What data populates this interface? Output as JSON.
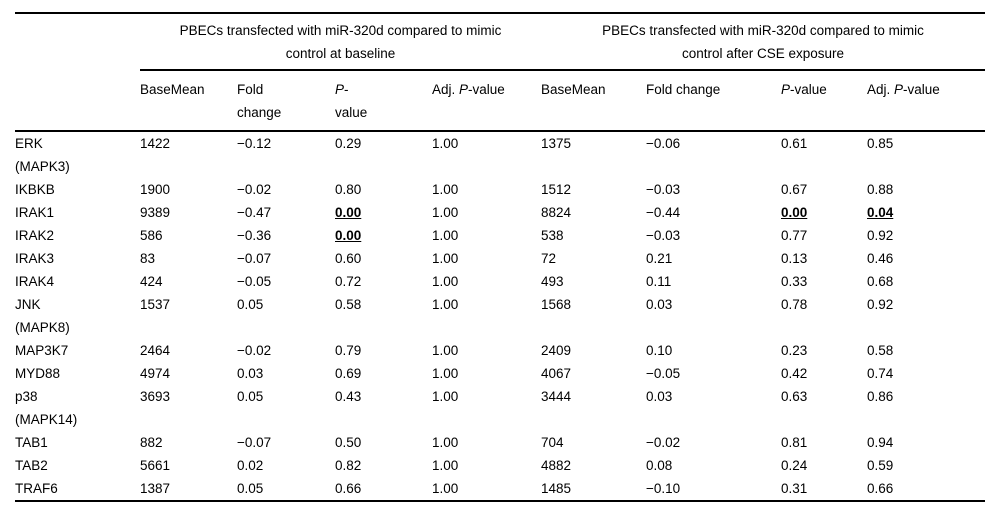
{
  "table": {
    "group_headers": [
      {
        "label": "PBECs transfected with miR-320d compared to mimic\ncontrol at baseline"
      },
      {
        "label": "PBECs transfected with miR-320d compared to mimic\ncontrol after CSE exposure"
      }
    ],
    "col_headers": [
      {
        "pre": "BaseMean",
        "it": "",
        "post": ""
      },
      {
        "pre": "Fold\nchange",
        "it": "",
        "post": ""
      },
      {
        "pre": "",
        "it": "P",
        "post": "-\nvalue"
      },
      {
        "pre": "Adj. ",
        "it": "P",
        "post": "-value"
      },
      {
        "pre": "BaseMean",
        "it": "",
        "post": ""
      },
      {
        "pre": "Fold change",
        "it": "",
        "post": ""
      },
      {
        "pre": "",
        "it": "P",
        "post": "-value"
      },
      {
        "pre": "Adj. ",
        "it": "P",
        "post": "-value"
      }
    ],
    "rows": [
      {
        "gene": "ERK\n(MAPK3)",
        "cells": [
          "1422",
          "−0.12",
          "0.29",
          "1.00",
          "1375",
          "−0.06",
          "0.61",
          "0.85"
        ]
      },
      {
        "gene": "IKBKB",
        "cells": [
          "1900",
          "−0.02",
          "0.80",
          "1.00",
          "1512",
          "−0.03",
          "0.67",
          "0.88"
        ]
      },
      {
        "gene": "IRAK1",
        "cells": [
          "9389",
          "−0.47",
          {
            "text": "0.00",
            "emph": true
          },
          "1.00",
          "8824",
          "−0.44",
          {
            "text": "0.00",
            "emph": true
          },
          {
            "text": "0.04",
            "emph": true
          }
        ]
      },
      {
        "gene": "IRAK2",
        "cells": [
          "586",
          "−0.36",
          {
            "text": "0.00",
            "emph": true
          },
          "1.00",
          "538",
          "−0.03",
          "0.77",
          "0.92"
        ]
      },
      {
        "gene": "IRAK3",
        "cells": [
          "83",
          "−0.07",
          "0.60",
          "1.00",
          "72",
          "0.21",
          "0.13",
          "0.46"
        ]
      },
      {
        "gene": "IRAK4",
        "cells": [
          "424",
          "−0.05",
          "0.72",
          "1.00",
          "493",
          "0.11",
          "0.33",
          "0.68"
        ]
      },
      {
        "gene": "JNK\n(MAPK8)",
        "cells": [
          "1537",
          "0.05",
          "0.58",
          "1.00",
          "1568",
          "0.03",
          "0.78",
          "0.92"
        ]
      },
      {
        "gene": "MAP3K7",
        "cells": [
          "2464",
          "−0.02",
          "0.79",
          "1.00",
          "2409",
          "0.10",
          "0.23",
          "0.58"
        ]
      },
      {
        "gene": "MYD88",
        "cells": [
          "4974",
          "0.03",
          "0.69",
          "1.00",
          "4067",
          "−0.05",
          "0.42",
          "0.74"
        ]
      },
      {
        "gene": "p38\n(MAPK14)",
        "cells": [
          "3693",
          "0.05",
          "0.43",
          "1.00",
          "3444",
          "0.03",
          "0.63",
          "0.86"
        ]
      },
      {
        "gene": "TAB1",
        "cells": [
          "882",
          "−0.07",
          "0.50",
          "1.00",
          "704",
          "−0.02",
          "0.81",
          "0.94"
        ]
      },
      {
        "gene": "TAB2",
        "cells": [
          "5661",
          "0.02",
          "0.82",
          "1.00",
          "4882",
          "0.08",
          "0.24",
          "0.59"
        ]
      },
      {
        "gene": "TRAF6",
        "cells": [
          "1387",
          "0.05",
          "0.66",
          "1.00",
          "1485",
          "−0.10",
          "0.31",
          "0.66"
        ]
      }
    ]
  }
}
